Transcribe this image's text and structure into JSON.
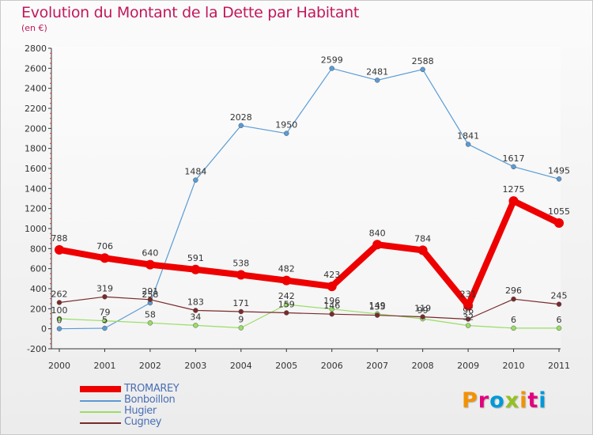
{
  "header": {
    "title": "Evolution du Montant de la Dette par Habitant",
    "subtitle": "(en €)"
  },
  "logo": {
    "text": "Proxiti",
    "colors": [
      "#f39200",
      "#e3007e",
      "#0099d8",
      "#95c11f",
      "#f39200",
      "#e3007e",
      "#0099d8"
    ]
  },
  "chart_data": {
    "type": "line",
    "x": [
      "2000",
      "2001",
      "2002",
      "2003",
      "2004",
      "2005",
      "2006",
      "2007",
      "2008",
      "2009",
      "2010",
      "2011"
    ],
    "ylim": [
      -200,
      2800
    ],
    "yticks": [
      -200,
      0,
      200,
      400,
      600,
      800,
      1000,
      1200,
      1400,
      1600,
      1800,
      2000,
      2200,
      2400,
      2600,
      2800
    ],
    "grid": false,
    "legend": "bottom-left",
    "series": [
      {
        "name": "TROMAREY",
        "color": "#ee0000",
        "values": [
          788,
          706,
          640,
          591,
          538,
          482,
          423,
          840,
          784,
          231,
          1275,
          1055
        ]
      },
      {
        "name": "Bonboillon",
        "color": "#5a9bd5",
        "values": [
          0,
          5,
          258,
          1484,
          2028,
          1950,
          2599,
          2481,
          2588,
          1841,
          1617,
          1495
        ]
      },
      {
        "name": "Hugier",
        "color": "#99dd66",
        "values": [
          100,
          79,
          58,
          34,
          9,
          242,
          196,
          149,
          99,
          32,
          6,
          6
        ]
      },
      {
        "name": "Cugney",
        "color": "#7a2a2a",
        "values": [
          262,
          319,
          291,
          183,
          171,
          159,
          146,
          135,
          119,
          96,
          296,
          245
        ]
      }
    ]
  }
}
